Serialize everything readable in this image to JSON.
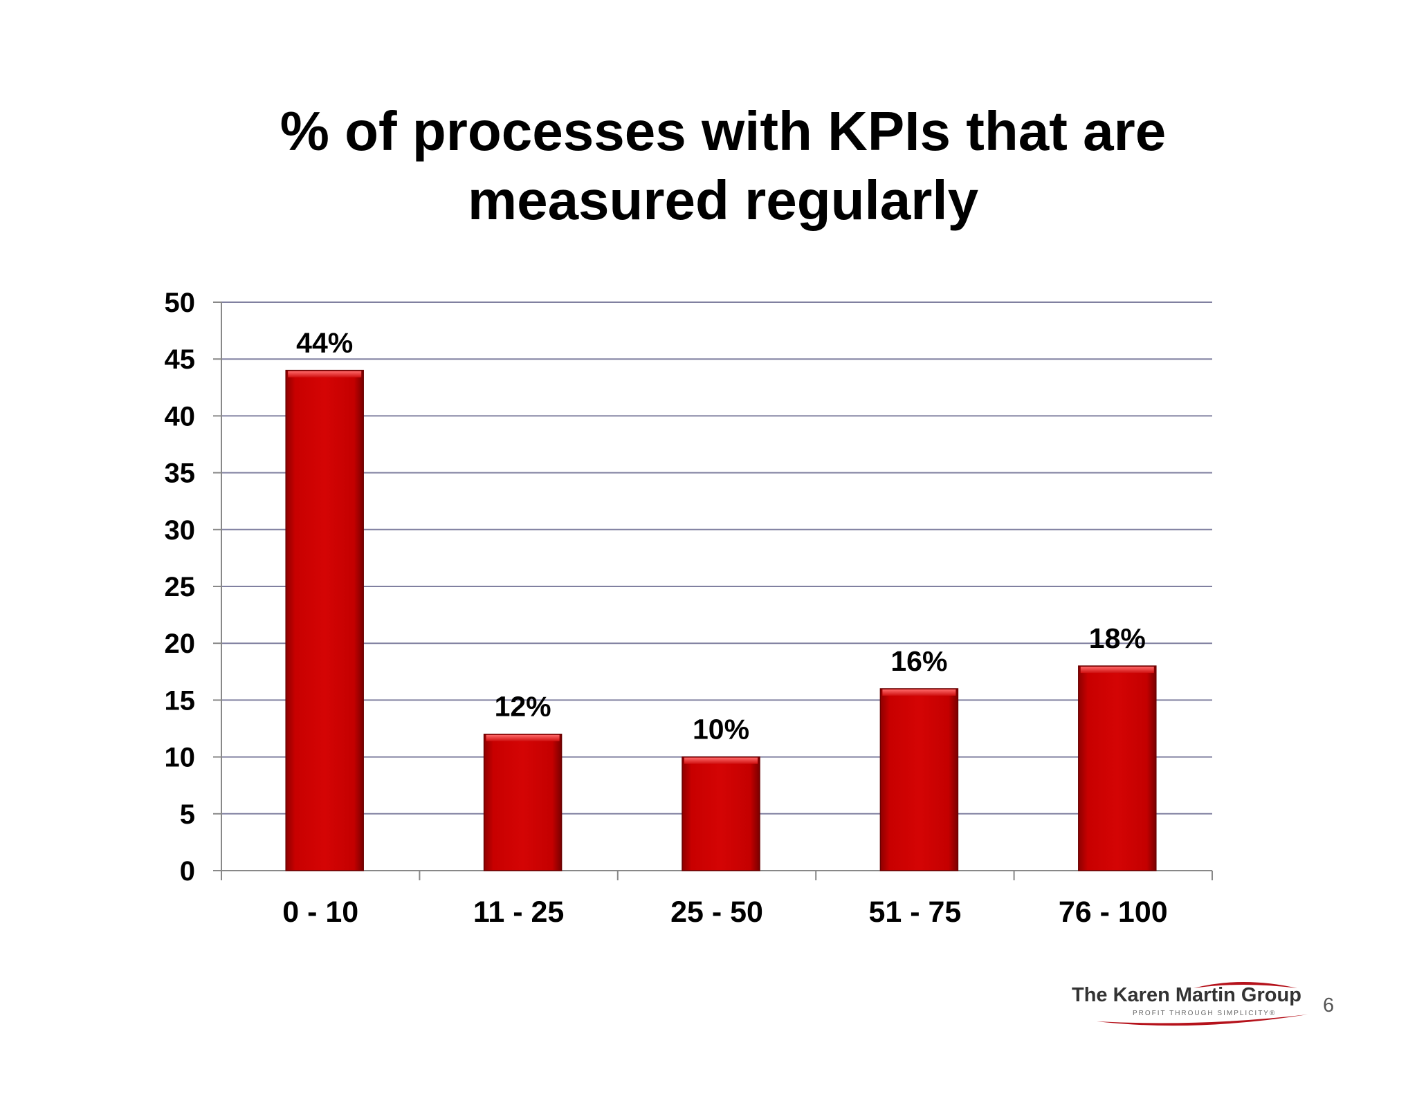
{
  "chart_data": {
    "type": "bar",
    "title_lines": [
      "% of processes with KPIs that are",
      "measured regularly"
    ],
    "categories": [
      "0 - 10",
      "11 - 25",
      "25 - 50",
      "51 - 75",
      "76 - 100"
    ],
    "values": [
      44,
      12,
      10,
      16,
      18
    ],
    "data_labels": [
      "44%",
      "12%",
      "10%",
      "16%",
      "18%"
    ],
    "ylim": [
      0,
      50
    ],
    "yticks": [
      0,
      5,
      10,
      15,
      20,
      25,
      30,
      35,
      40,
      45,
      50
    ],
    "grid": true,
    "legend": "none",
    "xlabel": "",
    "ylabel": "",
    "colors": {
      "bar": "#cc0000",
      "bar_highlight": "#ee3333",
      "bar_shadow": "#8a0000",
      "gridline": "#8080a0",
      "axis": "#888888"
    }
  },
  "footer": {
    "logo_name": "The Karen Martin Group",
    "logo_tagline": "PROFIT THROUGH SIMPLICITY®",
    "page_number": "6"
  }
}
